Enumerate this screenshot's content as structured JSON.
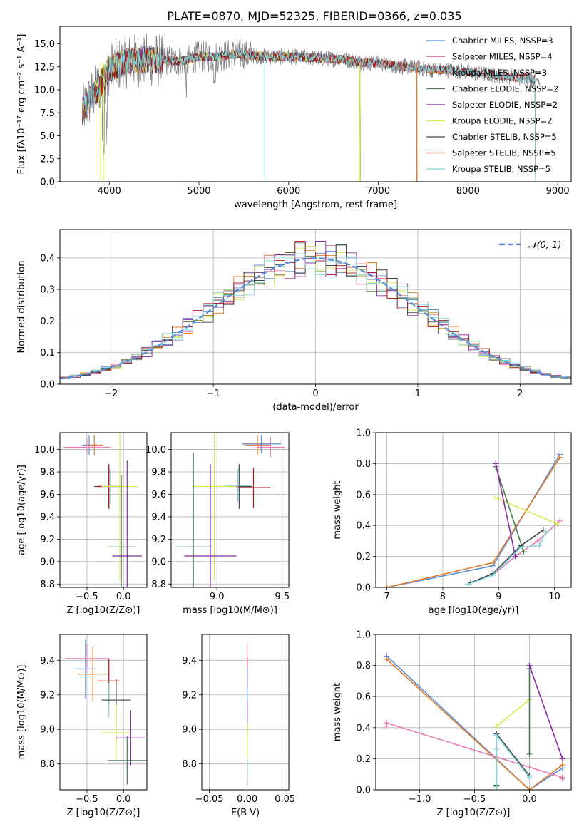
{
  "chart_data": [
    {
      "id": "spectrum",
      "type": "line",
      "title": "PLATE=0870, MJD=52325, FIBERID=0366, z=0.035",
      "xlabel": "wavelength [Angstrom, rest frame]",
      "ylabel": "Flux [fλ10⁻¹⁷ erg cm⁻² s⁻¹ A⁻¹]",
      "xlim": [
        3450,
        9150
      ],
      "ylim": [
        0,
        16.9
      ],
      "xticks": [
        4000,
        5000,
        6000,
        7000,
        8000,
        9000
      ],
      "yticks": [
        0.0,
        2.5,
        5.0,
        7.5,
        10.0,
        12.5,
        15.0
      ],
      "grid": false,
      "legend_position": "top-right",
      "observed_color": "#808080",
      "series": [
        {
          "name": "Chabrier MILES, N_SSP=3",
          "color": "#5b8fd8",
          "end": 7430
        },
        {
          "name": "Salpeter MILES, N_SSP=4",
          "color": "#e57fb6",
          "end": 7430
        },
        {
          "name": "Kroupa MILES, N_SSP=3",
          "color": "#e07b28",
          "end": 7430
        },
        {
          "name": "Chabrier ELODIE, N_SSP=2",
          "color": "#4a7d52",
          "end": 6800
        },
        {
          "name": "Salpeter ELODIE, N_SSP=2",
          "color": "#8b2ca8",
          "end": 6800
        },
        {
          "name": "Kroupa ELODIE, N_SSP=2",
          "color": "#d6ea52",
          "end": 6800
        },
        {
          "name": "Chabrier STELIB, N_SSP=5",
          "color": "#444444",
          "end": 8750
        },
        {
          "name": "Salpeter STELIB, N_SSP=5",
          "color": "#b3171c",
          "end": 8750
        },
        {
          "name": "Kroupa STELIB, N_SSP=5",
          "color": "#7fd6dc",
          "end": 8750
        }
      ],
      "profile": {
        "x": [
          3700,
          3800,
          3900,
          4000,
          4200,
          4400,
          4600,
          4800,
          5000,
          5200,
          5400,
          5600,
          5800,
          6000,
          6200,
          6400,
          6600,
          6800,
          7000,
          7200,
          7400,
          7600,
          7800,
          8000,
          8200,
          8400,
          8600,
          8800,
          9000
        ],
        "y": [
          7.6,
          9.2,
          10.5,
          12.3,
          13.1,
          13.3,
          13.2,
          13.1,
          13.6,
          13.6,
          13.9,
          13.7,
          13.6,
          13.6,
          13.5,
          13.4,
          13.3,
          13.0,
          12.9,
          12.6,
          12.4,
          12.2,
          12.1,
          11.9,
          11.7,
          11.5,
          11.3,
          11.2,
          11.0
        ]
      }
    },
    {
      "id": "residuals",
      "type": "line",
      "xlabel": "(data-model)/error",
      "ylabel": "Normed distribution",
      "xlim": [
        -2.5,
        2.5
      ],
      "ylim": [
        0,
        0.49
      ],
      "xticks": [
        -2,
        -1,
        0,
        1,
        2
      ],
      "yticks": [
        0.0,
        0.1,
        0.2,
        0.3,
        0.4
      ],
      "grid": true,
      "legend_position": "top-right",
      "legend": "𝒩(0, 1)",
      "gaussian_color": "#5b8fd8"
    },
    {
      "id": "age-vs-Z",
      "type": "scatter",
      "xlabel": "Z [log10(Z/Z⊙)]",
      "ylabel": "age [log10(age/yr)]",
      "xlim": [
        -0.87,
        0.32
      ],
      "ylim": [
        8.77,
        10.15
      ],
      "xticks": [
        -0.5,
        0.0
      ],
      "yticks": [
        8.8,
        9.0,
        9.2,
        9.4,
        9.6,
        9.8,
        10.0
      ],
      "grid": true,
      "points": [
        {
          "color": "#5b8fd8",
          "x": -0.47,
          "xerr": 0.1,
          "y": 10.04,
          "yerr": 0.09
        },
        {
          "color": "#e07b28",
          "x": -0.4,
          "xerr": 0.12,
          "y": 10.04,
          "yerr": 0.09
        },
        {
          "color": "#e57fb6",
          "x": -0.5,
          "xerr": 0.32,
          "y": 10.02,
          "yerr": 0.07
        },
        {
          "color": "#444444",
          "x": -0.2,
          "xerr": 0.2,
          "y": 9.67,
          "yerr": 0.2
        },
        {
          "color": "#b3171c",
          "x": -0.2,
          "xerr": 0.16,
          "y": 9.67,
          "yerr": 0.19
        },
        {
          "color": "#7fd6dc",
          "x": -0.18,
          "xerr": 0.12,
          "y": 9.67,
          "yerr": 0.15
        },
        {
          "color": "#d6ea52",
          "x": -0.05,
          "xerr": 0.25,
          "y": 9.67,
          "yerr": 0.84
        },
        {
          "color": "#4a7d52",
          "x": -0.03,
          "xerr": 0.2,
          "y": 9.13,
          "yerr": 0.64
        },
        {
          "color": "#8b2ca8",
          "x": 0.05,
          "xerr": 0.2,
          "y": 9.05,
          "yerr": 0.85
        }
      ]
    },
    {
      "id": "age-vs-mass",
      "type": "scatter",
      "xlabel": "mass [log10(M/M⊙)]",
      "ylabel": "",
      "xlim": [
        8.65,
        9.55
      ],
      "ylim": [
        8.77,
        10.15
      ],
      "xticks": [
        8.5,
        9.0,
        9.5
      ],
      "yticks": [
        8.8,
        9.0,
        9.2,
        9.4,
        9.6,
        9.8,
        10.0
      ],
      "grid": true,
      "points": [
        {
          "color": "#5b8fd8",
          "x": 9.34,
          "xerr": 0.15,
          "y": 10.05,
          "yerr": 0.08
        },
        {
          "color": "#e07b28",
          "x": 9.31,
          "xerr": 0.1,
          "y": 10.04,
          "yerr": 0.09
        },
        {
          "color": "#e57fb6",
          "x": 9.41,
          "xerr": 0.11,
          "y": 10.02,
          "yerr": 0.09
        },
        {
          "color": "#444444",
          "x": 9.17,
          "xerr": 0.1,
          "y": 9.67,
          "yerr": 0.2
        },
        {
          "color": "#b3171c",
          "x": 9.28,
          "xerr": 0.13,
          "y": 9.66,
          "yerr": 0.18
        },
        {
          "color": "#7fd6dc",
          "x": 9.16,
          "xerr": 0.1,
          "y": 9.68,
          "yerr": 0.15
        },
        {
          "color": "#d6ea52",
          "x": 8.98,
          "xerr": 0.17,
          "y": 9.67,
          "yerr": 0.84
        },
        {
          "color": "#4a7d52",
          "x": 8.82,
          "xerr": 0.14,
          "y": 9.13,
          "yerr": 0.84
        },
        {
          "color": "#8b2ca8",
          "x": 8.95,
          "xerr": 0.2,
          "y": 9.05,
          "yerr": 0.82
        }
      ]
    },
    {
      "id": "weight-vs-age",
      "type": "line",
      "xlabel": "age [log10(age/yr)]",
      "ylabel": "mass weight",
      "xlim": [
        6.8,
        10.3
      ],
      "ylim": [
        0,
        1.0
      ],
      "xticks": [
        7,
        8,
        9,
        10
      ],
      "yticks": [
        0.0,
        0.2,
        0.4,
        0.6,
        0.8,
        1.0
      ],
      "grid": true,
      "series": [
        {
          "color": "#5b8fd8",
          "x": [
            7.0,
            8.9,
            10.1
          ],
          "y": [
            0.0,
            0.14,
            0.86
          ]
        },
        {
          "color": "#e07b28",
          "x": [
            7.0,
            8.9,
            10.1
          ],
          "y": [
            0.0,
            0.16,
            0.84
          ]
        },
        {
          "color": "#e57fb6",
          "x": [
            8.5,
            8.9,
            9.3,
            9.7,
            10.1
          ],
          "y": [
            0.03,
            0.08,
            0.2,
            0.3,
            0.43
          ]
        },
        {
          "color": "#d6ea52",
          "x": [
            8.95,
            10.05
          ],
          "y": [
            0.58,
            0.41
          ]
        },
        {
          "color": "#4a7d52",
          "x": [
            8.95,
            9.45
          ],
          "y": [
            0.78,
            0.23
          ]
        },
        {
          "color": "#8b2ca8",
          "x": [
            8.95,
            9.3
          ],
          "y": [
            0.8,
            0.2
          ]
        },
        {
          "color": "#444444",
          "x": [
            8.5,
            8.9,
            9.4,
            9.8
          ],
          "y": [
            0.03,
            0.09,
            0.27,
            0.37
          ]
        },
        {
          "color": "#7fd6dc",
          "x": [
            8.45,
            8.9,
            9.4,
            9.73,
            9.85
          ],
          "y": [
            0.02,
            0.08,
            0.26,
            0.27,
            0.36
          ]
        }
      ]
    },
    {
      "id": "mass-vs-Z",
      "type": "scatter",
      "xlabel": "Z [log10(Z/Z⊙)]",
      "ylabel": "mass [log10(M/M⊙)]",
      "xlim": [
        -0.87,
        0.32
      ],
      "ylim": [
        8.65,
        9.55
      ],
      "xticks": [
        -0.5,
        0.0
      ],
      "yticks": [
        8.8,
        9.0,
        9.2,
        9.4
      ],
      "grid": true,
      "points": [
        {
          "color": "#5b8fd8",
          "x": -0.52,
          "xerr": 0.15,
          "y": 9.35,
          "yerr": 0.17
        },
        {
          "color": "#e07b28",
          "x": -0.42,
          "xerr": 0.2,
          "y": 9.32,
          "yerr": 0.16
        },
        {
          "color": "#e57fb6",
          "x": -0.5,
          "xerr": 0.3,
          "y": 9.41,
          "yerr": 0.08
        },
        {
          "color": "#b3171c",
          "x": -0.2,
          "xerr": 0.15,
          "y": 9.28,
          "yerr": 0.13
        },
        {
          "color": "#7fd6dc",
          "x": -0.2,
          "xerr": 0.08,
          "y": 9.17,
          "yerr": 0.1
        },
        {
          "color": "#444444",
          "x": -0.1,
          "xerr": 0.2,
          "y": 9.17,
          "yerr": 0.12
        },
        {
          "color": "#d6ea52",
          "x": -0.1,
          "xerr": 0.2,
          "y": 8.98,
          "yerr": 0.16
        },
        {
          "color": "#8b2ca8",
          "x": 0.1,
          "xerr": 0.2,
          "y": 8.95,
          "yerr": 0.16
        },
        {
          "color": "#4a7d52",
          "x": 0.05,
          "xerr": 0.27,
          "y": 8.82,
          "yerr": 0.14
        }
      ]
    },
    {
      "id": "mass-vs-EBV",
      "type": "scatter",
      "xlabel": "E(B-V)",
      "ylabel": "",
      "xlim": [
        -0.06,
        0.055
      ],
      "ylim": [
        8.65,
        9.55
      ],
      "xticks": [
        -0.05,
        0.0,
        0.05
      ],
      "yticks": [
        8.8,
        9.0,
        9.2,
        9.4
      ],
      "grid": true,
      "points": [
        {
          "color": "#e57fb6",
          "x": 0.0,
          "xerr": 0,
          "y": 9.4,
          "yerr": 0.1
        },
        {
          "color": "#b3171c",
          "x": 0.0,
          "xerr": 0,
          "y": 9.33,
          "yerr": 0.09
        },
        {
          "color": "#5b8fd8",
          "x": 0.0,
          "xerr": 0,
          "y": 9.2,
          "yerr": 0.16
        },
        {
          "color": "#8b2ca8",
          "x": 0.0,
          "xerr": 0,
          "y": 9.06,
          "yerr": 0.1
        },
        {
          "color": "#d6ea52",
          "x": 0.0,
          "xerr": 0,
          "y": 8.94,
          "yerr": 0.1
        },
        {
          "color": "#4a7d52",
          "x": 0.0,
          "xerr": 0,
          "y": 8.76,
          "yerr": 0.08
        }
      ]
    },
    {
      "id": "weight-vs-Z",
      "type": "line",
      "xlabel": "Z [log10(Z/Z⊙)]",
      "ylabel": "mass weight",
      "xlim": [
        -1.4,
        0.38
      ],
      "ylim": [
        0,
        1.0
      ],
      "xticks": [
        -1.0,
        -0.5,
        0.0
      ],
      "yticks": [
        0.0,
        0.2,
        0.4,
        0.6,
        0.8,
        1.0
      ],
      "grid": true,
      "series": [
        {
          "color": "#5b8fd8",
          "x": [
            -1.3,
            0.0,
            0.3
          ],
          "y": [
            0.86,
            0.0,
            0.14
          ]
        },
        {
          "color": "#e07b28",
          "x": [
            -1.3,
            0.0,
            0.3
          ],
          "y": [
            0.84,
            0.0,
            0.16
          ]
        },
        {
          "color": "#e57fb6",
          "x": [
            -1.3,
            -1.3,
            0.3,
            0.3
          ],
          "y": [
            0.41,
            0.43,
            0.08,
            0.07
          ]
        },
        {
          "color": "#d6ea52",
          "x": [
            -0.3,
            0.0
          ],
          "y": [
            0.41,
            0.58
          ]
        },
        {
          "color": "#4a7d52",
          "x": [
            0.0,
            0.0
          ],
          "y": [
            0.23,
            0.78
          ]
        },
        {
          "color": "#8b2ca8",
          "x": [
            0.0,
            0.3
          ],
          "y": [
            0.8,
            0.2
          ]
        },
        {
          "color": "#444444",
          "x": [
            -0.3,
            -0.3,
            0.0
          ],
          "y": [
            0.03,
            0.36,
            0.09
          ]
        },
        {
          "color": "#7fd6dc",
          "x": [
            -0.3,
            -0.3,
            -0.3,
            0.0
          ],
          "y": [
            0.02,
            0.26,
            0.35,
            0.08
          ]
        }
      ]
    }
  ]
}
